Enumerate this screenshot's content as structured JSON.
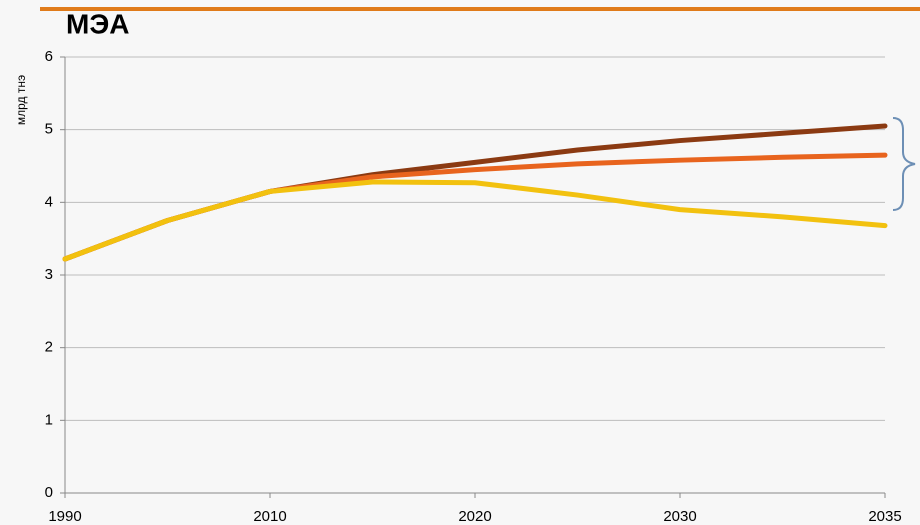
{
  "chart_data": {
    "type": "line",
    "title": "МЭА",
    "y_label": "млрд тнэ",
    "categories": [
      "1990",
      null,
      "2010",
      null,
      "2020",
      null,
      "2030",
      null,
      "2035"
    ],
    "series": [
      {
        "color": "#8b3a12",
        "values": [
          3.22,
          3.75,
          4.15,
          4.38,
          4.55,
          4.72,
          4.85,
          4.95,
          5.05
        ]
      },
      {
        "color": "#e8641e",
        "values": [
          3.22,
          3.75,
          4.15,
          4.35,
          4.45,
          4.53,
          4.58,
          4.62,
          4.65
        ]
      },
      {
        "color": "#f2c10f",
        "values": [
          3.22,
          3.75,
          4.15,
          4.28,
          4.27,
          4.1,
          3.9,
          3.8,
          3.68
        ]
      }
    ],
    "ylim": [
      0,
      6
    ],
    "yticks": [
      0,
      1,
      2,
      3,
      4,
      5,
      6
    ],
    "grid": true
  }
}
